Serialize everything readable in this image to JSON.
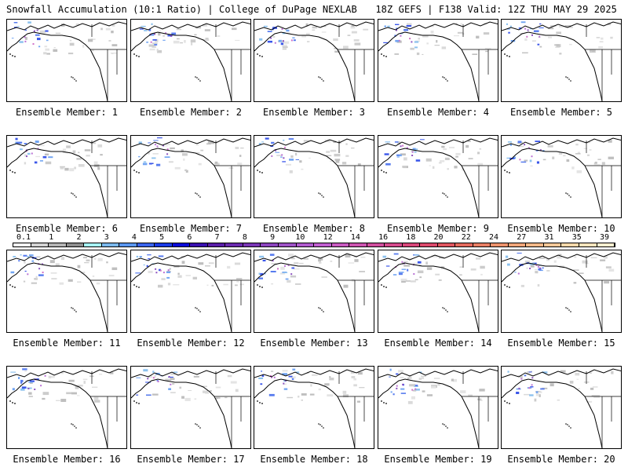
{
  "header": {
    "title": "Snowfall Accumulation (10:1 Ratio) | College of DuPage NEXLAB",
    "run_info": "18Z GEFS | F138 Valid: 12Z THU MAY 29 2025"
  },
  "members": [
    {
      "label": "Ensemble Member: 1"
    },
    {
      "label": "Ensemble Member: 2"
    },
    {
      "label": "Ensemble Member: 3"
    },
    {
      "label": "Ensemble Member: 4"
    },
    {
      "label": "Ensemble Member: 5"
    },
    {
      "label": "Ensemble Member: 6"
    },
    {
      "label": "Ensemble Member: 7"
    },
    {
      "label": "Ensemble Member: 8"
    },
    {
      "label": "Ensemble Member: 9"
    },
    {
      "label": "Ensemble Member: 10"
    },
    {
      "label": "Ensemble Member: 11"
    },
    {
      "label": "Ensemble Member: 12"
    },
    {
      "label": "Ensemble Member: 13"
    },
    {
      "label": "Ensemble Member: 14"
    },
    {
      "label": "Ensemble Member: 15"
    },
    {
      "label": "Ensemble Member: 16"
    },
    {
      "label": "Ensemble Member: 17"
    },
    {
      "label": "Ensemble Member: 18"
    },
    {
      "label": "Ensemble Member: 19"
    },
    {
      "label": "Ensemble Member: 20"
    }
  ],
  "colorbar": {
    "labels": [
      "0.1",
      "1",
      "2",
      "3",
      "4",
      "5",
      "6",
      "7",
      "8",
      "9",
      "10",
      "12",
      "14",
      "16",
      "18",
      "20",
      "22",
      "24",
      "27",
      "31",
      "35",
      "39"
    ],
    "colors": [
      "#f2f2f2",
      "#d4d4d4",
      "#b4b4b4",
      "#8e8e8e",
      "#a6f2f4",
      "#7ab8ec",
      "#5a96f0",
      "#3a64ec",
      "#1a3ae6",
      "#0a0ad8",
      "#3a10b0",
      "#5a1ea8",
      "#6a2aae",
      "#7a36b6",
      "#8c44be",
      "#9e52c6",
      "#b05ace",
      "#c05ed0",
      "#c85ac0",
      "#cc54b0",
      "#d04e9e",
      "#d44a8c",
      "#d8467a",
      "#dc4a6c",
      "#e05660",
      "#e46a5e",
      "#e87e64",
      "#ec926c",
      "#f0a67a",
      "#f2b888",
      "#f4c898",
      "#f6d8aa",
      "#f8e4bc",
      "#fceed0"
    ]
  }
}
